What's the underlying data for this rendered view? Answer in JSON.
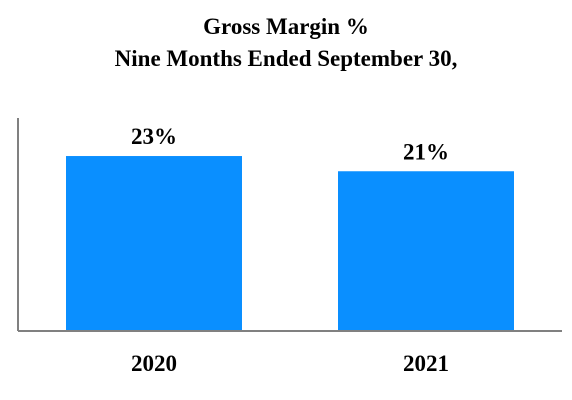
{
  "chart_data": {
    "type": "bar",
    "title": "Gross Margin %",
    "subtitle": "Nine Months Ended September 30,",
    "categories": [
      "2020",
      "2021"
    ],
    "values": [
      23,
      21
    ],
    "data_labels": [
      "23%",
      "21%"
    ],
    "ylim": [
      0,
      28
    ],
    "grid": false,
    "bar_color": "#0a8fff",
    "axis_color": "#808080"
  }
}
